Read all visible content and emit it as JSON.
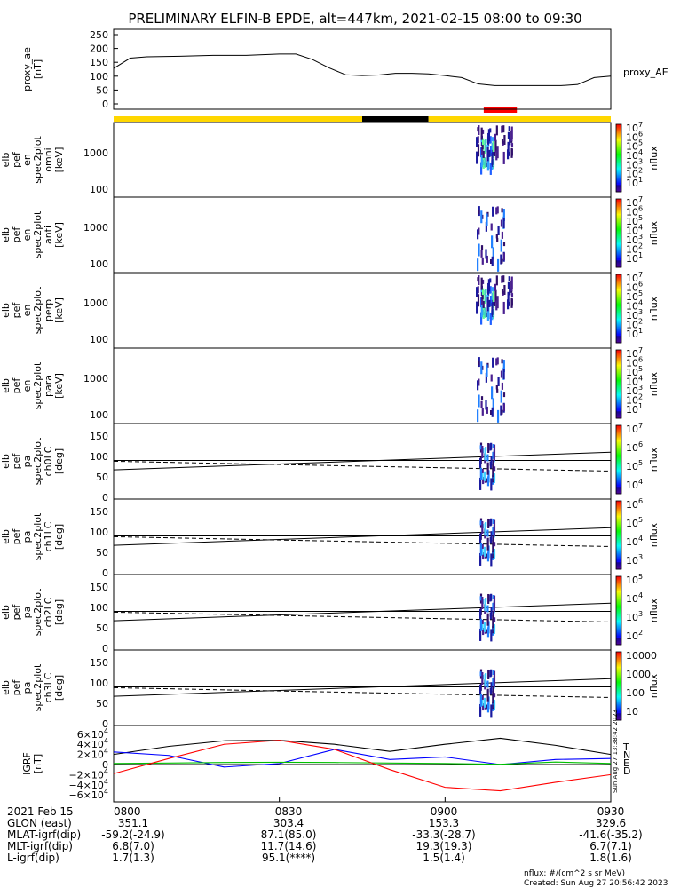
{
  "title": "PRELIMINARY ELFIN-B EPDE, alt=447km, 2021-02-15 08:00 to 09:30",
  "colors": {
    "axis": "#000000",
    "sun_bar": "#ffd700",
    "shadow_bar": "#000000",
    "science_bar": "#ff0000",
    "bx": "#000000",
    "by": "#0000ff",
    "bz": "#00c000",
    "bt": "#ff0000"
  },
  "timebar": {
    "segments": [
      {
        "start": "08:00",
        "end": "08:45",
        "type": "sunlight"
      },
      {
        "start": "08:45",
        "end": "08:57",
        "type": "shadow"
      },
      {
        "start": "08:57",
        "end": "09:30",
        "type": "sunlight"
      }
    ],
    "science_zone": {
      "start": "09:07",
      "end": "09:13"
    }
  },
  "panels": [
    {
      "id": "proxy-ae",
      "ylabel": [
        "proxy_ae",
        "[nT]"
      ],
      "yticks": [
        "250",
        "200",
        "150",
        "100",
        "50",
        "0"
      ],
      "right_label": "proxy_AE"
    },
    {
      "id": "spec-omni",
      "ylabel": [
        "elb",
        "pef",
        "en",
        "spec2plot",
        "omni",
        "[keV]"
      ],
      "yticks": [
        "1000",
        "100"
      ],
      "colorbar": {
        "label": "nflux",
        "ticks": [
          "10",
          "10",
          "10",
          "10",
          "10",
          "10",
          "10"
        ],
        "exponents": [
          "7",
          "6",
          "5",
          "4",
          "3",
          "2",
          "1"
        ]
      }
    },
    {
      "id": "spec-anti",
      "ylabel": [
        "elb",
        "pef",
        "en",
        "spec2plot",
        "anti",
        "[keV]"
      ],
      "yticks": [
        "1000",
        "100"
      ],
      "colorbar": {
        "label": "nflux",
        "ticks": [
          "10",
          "10",
          "10",
          "10",
          "10",
          "10",
          "10"
        ],
        "exponents": [
          "7",
          "6",
          "5",
          "4",
          "3",
          "2",
          "1"
        ]
      }
    },
    {
      "id": "spec-perp",
      "ylabel": [
        "elb",
        "pef",
        "en",
        "spec2plot",
        "perp",
        "[keV]"
      ],
      "yticks": [
        "1000",
        "100"
      ],
      "colorbar": {
        "label": "nflux",
        "ticks": [
          "10",
          "10",
          "10",
          "10",
          "10",
          "10",
          "10"
        ],
        "exponents": [
          "7",
          "6",
          "5",
          "4",
          "3",
          "2",
          "1"
        ]
      }
    },
    {
      "id": "spec-para",
      "ylabel": [
        "elb",
        "pef",
        "en",
        "spec2plot",
        "para",
        "[keV]"
      ],
      "yticks": [
        "1000",
        "100"
      ],
      "colorbar": {
        "label": "nflux",
        "ticks": [
          "10",
          "10",
          "10",
          "10",
          "10",
          "10",
          "10"
        ],
        "exponents": [
          "7",
          "6",
          "5",
          "4",
          "3",
          "2",
          "1"
        ]
      }
    },
    {
      "id": "pa-ch0",
      "ylabel": [
        "elb",
        "pef",
        "pa",
        "spec2plot",
        "ch0LC",
        "[deg]"
      ],
      "yticks": [
        "150",
        "100",
        "50",
        "0"
      ],
      "colorbar": {
        "label": "nflux",
        "ticks": [
          "10",
          "10",
          "10",
          "10"
        ],
        "exponents": [
          "7",
          "6",
          "5",
          "4"
        ]
      }
    },
    {
      "id": "pa-ch1",
      "ylabel": [
        "elb",
        "pef",
        "pa",
        "spec2plot",
        "ch1LC",
        "[deg]"
      ],
      "yticks": [
        "150",
        "100",
        "50",
        "0"
      ],
      "colorbar": {
        "label": "nflux",
        "ticks": [
          "10",
          "10",
          "10",
          "10"
        ],
        "exponents": [
          "6",
          "5",
          "4",
          "3"
        ]
      }
    },
    {
      "id": "pa-ch2",
      "ylabel": [
        "elb",
        "pef",
        "pa",
        "spec2plot",
        "ch2LC",
        "[deg]"
      ],
      "yticks": [
        "150",
        "100",
        "50",
        "0"
      ],
      "colorbar": {
        "label": "nflux",
        "ticks": [
          "10",
          "10",
          "10",
          "10"
        ],
        "exponents": [
          "5",
          "4",
          "3",
          "2"
        ]
      }
    },
    {
      "id": "pa-ch3",
      "ylabel": [
        "elb",
        "pef",
        "pa",
        "spec2plot",
        "ch3LC",
        "[deg]"
      ],
      "yticks": [
        "150",
        "100",
        "50",
        "0"
      ],
      "colorbar": {
        "label": "nflux",
        "ticks": [
          "10000",
          "1000",
          "100",
          "10"
        ],
        "exponents": []
      }
    },
    {
      "id": "igrf",
      "ylabel": [
        "IGRF",
        "[nT]"
      ],
      "yticks": [
        "6×10",
        "4×10",
        "2×10",
        "0",
        "−2×10",
        "−4×10",
        "−6×10"
      ],
      "ytick_exponents": [
        "4",
        "4",
        "4",
        "",
        "4",
        "4",
        "4"
      ],
      "legend": [
        "T",
        "N",
        "E",
        "D"
      ],
      "timestamp": "Sun Aug 27 13:38:42 2023"
    }
  ],
  "chart_data": [
    {
      "type": "line",
      "title": "",
      "ylabel": "proxy_ae [nT]",
      "ylim": [
        0,
        250
      ],
      "x": [
        "08:00",
        "08:03",
        "08:06",
        "08:12",
        "08:18",
        "08:24",
        "08:30",
        "08:33",
        "08:36",
        "08:39",
        "08:42",
        "08:45",
        "08:48",
        "08:51",
        "08:54",
        "08:57",
        "09:00",
        "09:03",
        "09:06",
        "09:09",
        "09:12",
        "09:15",
        "09:18",
        "09:21",
        "09:24",
        "09:27",
        "09:30"
      ],
      "series": [
        {
          "name": "proxy_AE",
          "values": [
            128,
            165,
            170,
            172,
            175,
            175,
            180,
            180,
            160,
            130,
            105,
            102,
            104,
            110,
            110,
            108,
            102,
            95,
            72,
            66,
            66,
            66,
            66,
            66,
            70,
            95,
            100
          ]
        }
      ]
    },
    {
      "type": "heatmap",
      "ylabel": "elb pef en spec2plot [keV]",
      "yscale": "log",
      "note_visible": "flux enhancement near 09:04-09:11",
      "x_range": [
        "08:00",
        "09:30"
      ],
      "ylim": [
        60,
        7000
      ],
      "colorbar": {
        "label": "nflux",
        "scale": "log",
        "range": [
          10,
          10000000
        ]
      }
    },
    {
      "type": "heatmap",
      "ylabel": "elb pef pa spec2plot [deg]",
      "x_range": [
        "08:00",
        "09:30"
      ],
      "ylim": [
        0,
        180
      ],
      "lines": [
        {
          "name": "loss cone",
          "style": "solid",
          "values": [
            [
              "08:00",
              67
            ],
            [
              "09:30",
              110
            ]
          ]
        },
        {
          "name": "90 deg",
          "style": "solid",
          "values": [
            [
              "08:00",
              90
            ],
            [
              "09:30",
              90
            ]
          ]
        },
        {
          "name": "anti loss cone",
          "style": "dashed",
          "values": [
            [
              "08:00",
              88
            ],
            [
              "09:30",
              64
            ]
          ]
        }
      ]
    },
    {
      "type": "line",
      "ylabel": "IGRF [nT]",
      "ylim": [
        -65000,
        65000
      ],
      "x": [
        "08:00",
        "08:10",
        "08:20",
        "08:30",
        "08:40",
        "08:50",
        "09:00",
        "09:10",
        "09:20",
        "09:30"
      ],
      "series": [
        {
          "name": "T",
          "values": [
            20000,
            36000,
            47000,
            48000,
            40000,
            26000,
            40000,
            52000,
            38000,
            20000
          ]
        },
        {
          "name": "N",
          "values": [
            25000,
            18000,
            -5000,
            2000,
            30000,
            10000,
            15000,
            0,
            10000,
            12000
          ]
        },
        {
          "name": "E",
          "values": [
            2000,
            3000,
            4000,
            4500,
            4000,
            3000,
            2000,
            500,
            5000,
            2000
          ]
        },
        {
          "name": "D",
          "values": [
            -18000,
            12000,
            40000,
            48000,
            30000,
            -10000,
            -45000,
            -52000,
            -35000,
            -20000
          ]
        }
      ]
    }
  ],
  "axis_table": {
    "date": "2021 Feb 15",
    "times": [
      "0800",
      "0830",
      "0900",
      "0930"
    ],
    "rows": [
      {
        "label": "GLON (east)",
        "values": [
          "351.1",
          "303.4",
          "153.3",
          "329.6"
        ]
      },
      {
        "label": "MLAT-igrf(dip)",
        "values": [
          "-59.2(-24.9)",
          "87.1(85.0)",
          "-33.3(-28.7)",
          "-41.6(-35.2)"
        ]
      },
      {
        "label": "MLT-igrf(dip)",
        "values": [
          "6.8(7.0)",
          "11.7(14.6)",
          "19.3(19.3)",
          "6.7(7.1)"
        ]
      },
      {
        "label": "L-igrf(dip)",
        "values": [
          "1.7(1.3)",
          "95.1(****)",
          "1.5(1.4)",
          "1.8(1.6)"
        ]
      }
    ]
  },
  "footer": {
    "units": "nflux: #/(cm^2 s sr MeV)",
    "created": "Created: Sun Aug 27 20:56:42 2023"
  }
}
